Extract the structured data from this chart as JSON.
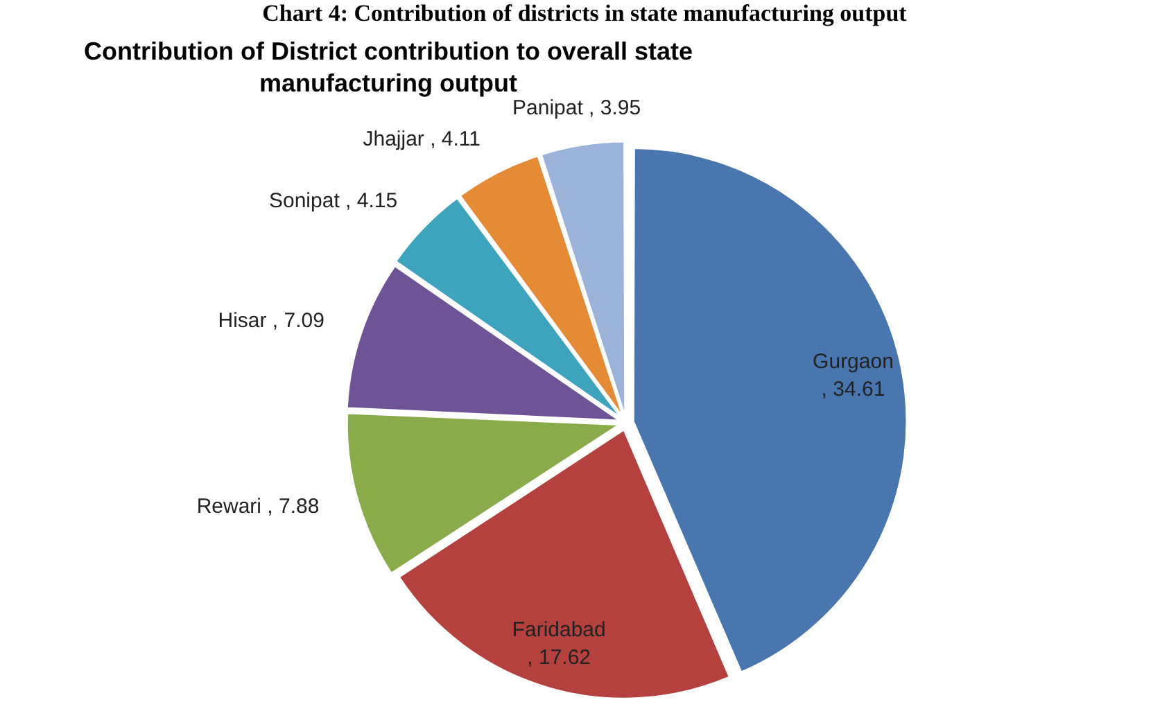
{
  "chart_data": {
    "type": "pie",
    "title": "Contribution of District contribution to overall state manufacturing output",
    "annotations": [
      "Chart 4: Contribution of districts in state manufacturing output"
    ],
    "categories": [
      "Gurgaon",
      "Faridabad",
      "Rewari",
      "Hisar",
      "Sonipat",
      "Jhajjar",
      "Panipat"
    ],
    "values": [
      34.61,
      17.62,
      7.88,
      7.09,
      4.15,
      4.11,
      3.95
    ],
    "colors": [
      "#4a76b0",
      "#b5413f",
      "#8aab4a",
      "#6e5496",
      "#3ea3bd",
      "#e58a35",
      "#9bb3d9"
    ],
    "value_labels": [
      ", 34.61",
      ", 17.62",
      ", 7.88",
      ", 7.09",
      ", 4.15",
      ", 4.11",
      ", 3.95"
    ],
    "legend": false
  }
}
